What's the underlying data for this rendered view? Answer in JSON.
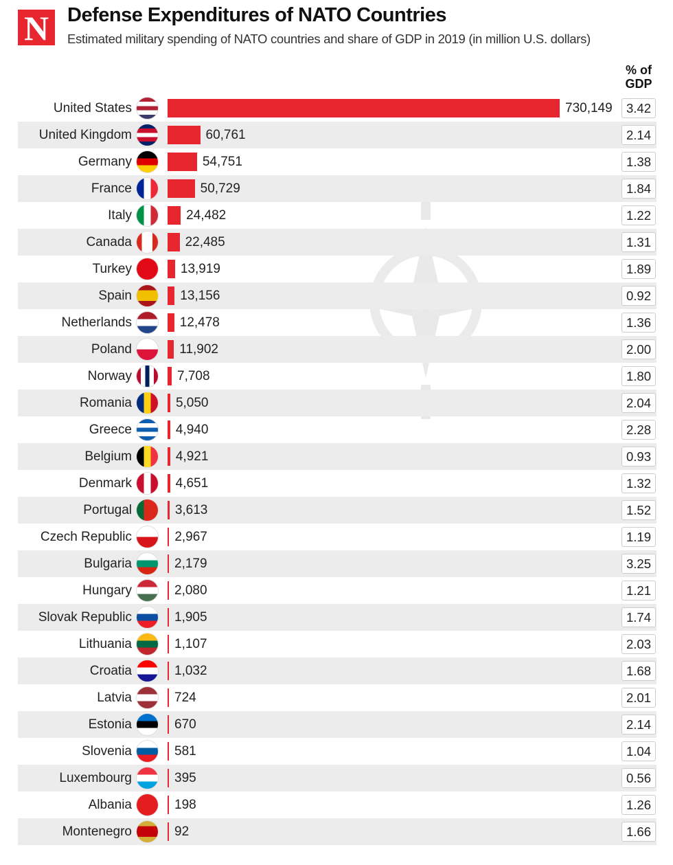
{
  "header": {
    "logo": "N",
    "title": "Defense Expenditures of NATO Countries",
    "subtitle": "Estimated military spending of NATO countries and share of GDP in 2019 (in million U.S. dollars)",
    "gdp_col_line1": "% of",
    "gdp_col_line2": "GDP"
  },
  "colors": {
    "bar": "#e8262f",
    "stripe": "#ececec",
    "watermark": "#e6e6e6"
  },
  "chart_data": {
    "type": "bar",
    "orientation": "horizontal",
    "title": "Defense Expenditures of NATO Countries",
    "subtitle": "Estimated military spending of NATO countries and share of GDP in 2019 (in million U.S. dollars)",
    "categories": [
      "United States",
      "United Kingdom",
      "Germany",
      "France",
      "Italy",
      "Canada",
      "Turkey",
      "Spain",
      "Netherlands",
      "Poland",
      "Norway",
      "Romania",
      "Greece",
      "Belgium",
      "Denmark",
      "Portugal",
      "Czech Republic",
      "Bulgaria",
      "Hungary",
      "Slovak Republic",
      "Lithuania",
      "Croatia",
      "Latvia",
      "Estonia",
      "Slovenia",
      "Luxembourg",
      "Albania",
      "Montenegro"
    ],
    "values": [
      730149,
      60761,
      54751,
      50729,
      24482,
      22485,
      13919,
      13156,
      12478,
      11902,
      7708,
      5050,
      4940,
      4921,
      4651,
      3613,
      2967,
      2179,
      2080,
      1905,
      1107,
      1032,
      724,
      670,
      581,
      395,
      198,
      92
    ],
    "value_labels": [
      "730,149",
      "60,761",
      "54,751",
      "50,729",
      "24,482",
      "22,485",
      "13,919",
      "13,156",
      "12,478",
      "11,902",
      "7,708",
      "5,050",
      "4,940",
      "4,921",
      "4,651",
      "3,613",
      "2,967",
      "2,179",
      "2,080",
      "1,905",
      "1,107",
      "1,032",
      "724",
      "670",
      "581",
      "395",
      "198",
      "92"
    ],
    "gdp_share": [
      "3.42",
      "2.14",
      "1.38",
      "1.84",
      "1.22",
      "1.31",
      "1.89",
      "0.92",
      "1.36",
      "2.00",
      "1.80",
      "2.04",
      "2.28",
      "0.93",
      "1.32",
      "1.52",
      "1.19",
      "3.25",
      "1.21",
      "1.74",
      "2.03",
      "1.68",
      "2.01",
      "2.14",
      "1.04",
      "0.56",
      "1.26",
      "1.66"
    ],
    "xlim": [
      0,
      730149
    ],
    "grid": false,
    "legend": "none"
  },
  "flags": [
    {
      "dir": "h",
      "c": [
        "#b22234",
        "#fff",
        "#b22234",
        "#fff",
        "#3c3b6e"
      ]
    },
    {
      "dir": "h",
      "c": [
        "#012169",
        "#c8102e",
        "#fff",
        "#c8102e",
        "#012169"
      ]
    },
    {
      "dir": "h",
      "c": [
        "#000",
        "#dd0000",
        "#ffce00"
      ]
    },
    {
      "dir": "v",
      "c": [
        "#002395",
        "#fff",
        "#ed2939"
      ]
    },
    {
      "dir": "v",
      "c": [
        "#009246",
        "#fff",
        "#ce2b37"
      ]
    },
    {
      "dir": "v",
      "c": [
        "#d52b1e",
        "#fff",
        "#fff",
        "#d52b1e"
      ]
    },
    {
      "dir": "h",
      "c": [
        "#e30a17",
        "#e30a17"
      ]
    },
    {
      "dir": "h",
      "c": [
        "#aa151b",
        "#f1bf00",
        "#f1bf00",
        "#aa151b"
      ]
    },
    {
      "dir": "h",
      "c": [
        "#ae1c28",
        "#fff",
        "#21468b"
      ]
    },
    {
      "dir": "h",
      "c": [
        "#fff",
        "#dc143c"
      ]
    },
    {
      "dir": "v",
      "c": [
        "#ba0c2f",
        "#fff",
        "#00205b",
        "#fff",
        "#ba0c2f"
      ]
    },
    {
      "dir": "v",
      "c": [
        "#002b7f",
        "#fcd116",
        "#ce1126"
      ]
    },
    {
      "dir": "h",
      "c": [
        "#0d5eaf",
        "#fff",
        "#0d5eaf",
        "#fff",
        "#0d5eaf"
      ]
    },
    {
      "dir": "v",
      "c": [
        "#000",
        "#fdda24",
        "#ef3340"
      ]
    },
    {
      "dir": "v",
      "c": [
        "#c8102e",
        "#fff",
        "#c8102e"
      ]
    },
    {
      "dir": "v",
      "c": [
        "#046a38",
        "#da291c",
        "#da291c"
      ]
    },
    {
      "dir": "h",
      "c": [
        "#fff",
        "#d7141a"
      ]
    },
    {
      "dir": "h",
      "c": [
        "#fff",
        "#00966e",
        "#d62612"
      ]
    },
    {
      "dir": "h",
      "c": [
        "#ce2939",
        "#fff",
        "#477050"
      ]
    },
    {
      "dir": "h",
      "c": [
        "#fff",
        "#0b4ea2",
        "#ee1c25"
      ]
    },
    {
      "dir": "h",
      "c": [
        "#fdb913",
        "#006a44",
        "#c1272d"
      ]
    },
    {
      "dir": "h",
      "c": [
        "#ff0000",
        "#fff",
        "#171796"
      ]
    },
    {
      "dir": "h",
      "c": [
        "#9e3039",
        "#fff",
        "#9e3039"
      ]
    },
    {
      "dir": "h",
      "c": [
        "#0072ce",
        "#000",
        "#fff"
      ]
    },
    {
      "dir": "h",
      "c": [
        "#fff",
        "#005da4",
        "#ed1c24"
      ]
    },
    {
      "dir": "h",
      "c": [
        "#ef3340",
        "#fff",
        "#00a3e0"
      ]
    },
    {
      "dir": "h",
      "c": [
        "#e41e20",
        "#e41e20"
      ]
    },
    {
      "dir": "h",
      "c": [
        "#d4af37",
        "#c40308",
        "#c40308",
        "#d4af37"
      ]
    }
  ]
}
